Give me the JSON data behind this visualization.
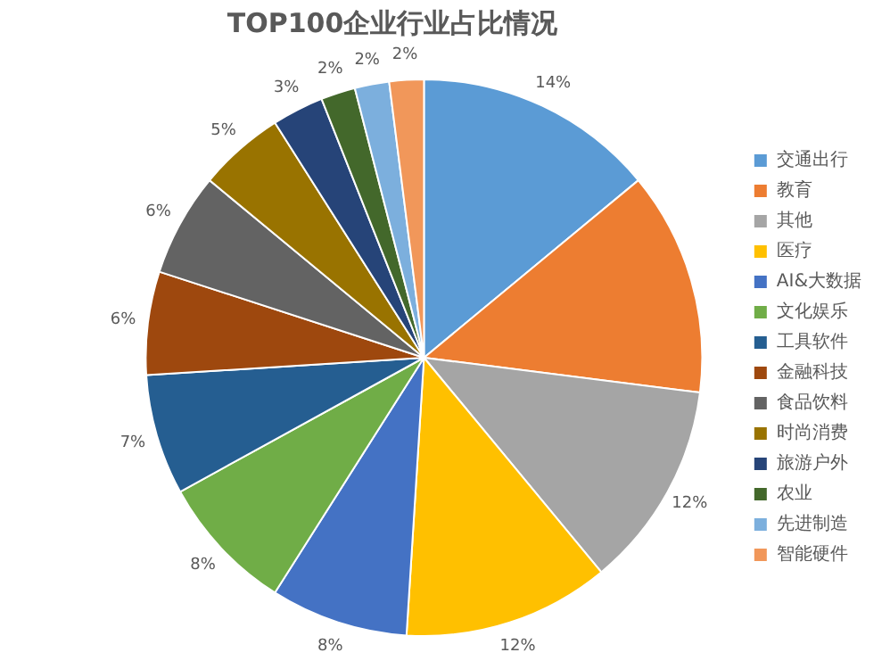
{
  "chart_data": {
    "type": "pie",
    "title": "TOP100企业行业占比情况",
    "categories": [
      "交通出行",
      "教育",
      "其他",
      "医疗",
      "AI&大数据",
      "文化娱乐",
      "工具软件",
      "金融科技",
      "食品饮料",
      "时尚消费",
      "旅游户外",
      "农业",
      "先进制造",
      "智能硬件"
    ],
    "values": [
      14,
      13,
      12,
      12,
      8,
      8,
      7,
      6,
      6,
      5,
      3,
      2,
      2,
      2
    ],
    "value_labels": [
      "14%",
      null,
      "12%",
      "12%",
      "8%",
      "8%",
      "7%",
      "6%",
      "6%",
      "5%",
      "3%",
      "2%",
      "2%",
      "2%"
    ],
    "colors": [
      "#5b9bd5",
      "#ed7d31",
      "#a5a5a5",
      "#ffc000",
      "#4472c4",
      "#70ad47",
      "#255e91",
      "#9e480e",
      "#636363",
      "#997300",
      "#264478",
      "#43682b",
      "#7cafdd",
      "#f1975a"
    ],
    "legend": "right"
  }
}
